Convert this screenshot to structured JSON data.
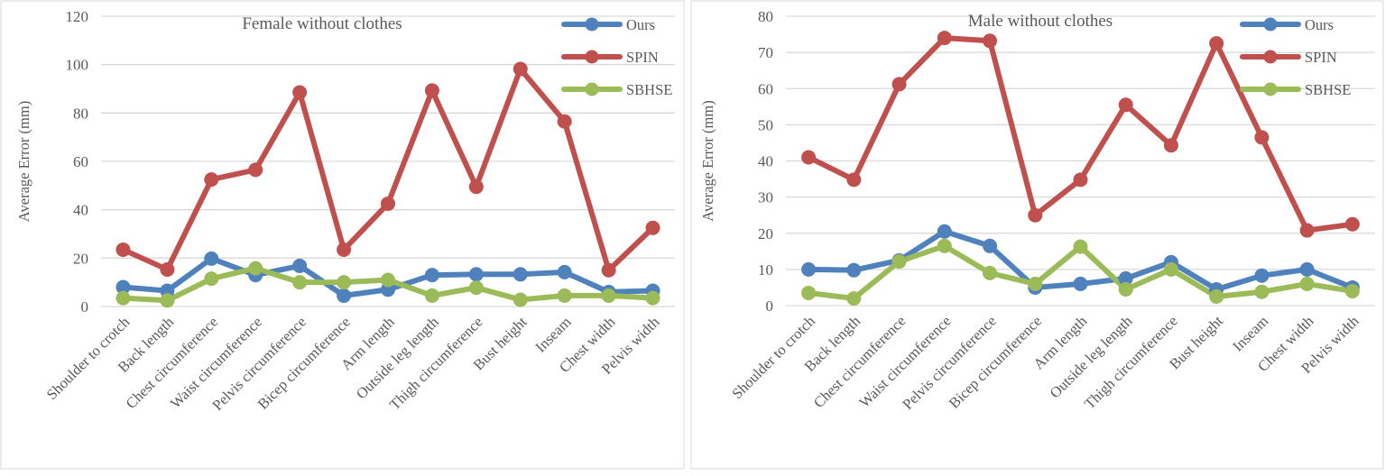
{
  "chart_data": [
    {
      "type": "line",
      "title": "Female without clothes",
      "xlabel": "",
      "ylabel": "Average Error (mm)",
      "ylim": [
        0,
        120
      ],
      "ytick_step": 20,
      "grid": true,
      "legend_position": "top-right",
      "categories": [
        "Shoulder to crotch",
        "Back length",
        "Chest circumference",
        "Waist circumference",
        "Pelvis circumference",
        "Bicep circumference",
        "Arm length",
        "Outside leg length",
        "Thigh circumference",
        "Bust height",
        "Inseam",
        "Chest width",
        "Pelvis width"
      ],
      "series": [
        {
          "name": "Ours",
          "color": "#4f81bd",
          "values": [
            8.0,
            6.5,
            19.8,
            13.0,
            16.8,
            4.5,
            7.0,
            13.0,
            13.3,
            13.3,
            14.2,
            6.0,
            6.5
          ]
        },
        {
          "name": "SPIN",
          "color": "#c0504d",
          "values": [
            23.5,
            15.3,
            52.5,
            56.5,
            88.5,
            23.5,
            42.5,
            89.3,
            49.5,
            98.2,
            76.5,
            15.0,
            32.5
          ]
        },
        {
          "name": "SBHSE",
          "color": "#9bbb59",
          "values": [
            3.5,
            2.5,
            11.5,
            15.8,
            10.0,
            10.0,
            11.0,
            4.5,
            7.8,
            2.8,
            4.5,
            4.5,
            3.5
          ]
        }
      ]
    },
    {
      "type": "line",
      "title": "Male without clothes",
      "xlabel": "",
      "ylabel": "Average Error (mm)",
      "ylim": [
        0,
        80
      ],
      "ytick_step": 10,
      "grid": true,
      "legend_position": "top-right",
      "categories": [
        "Shoulder to crotch",
        "Back length",
        "Chest circumference",
        "Waist circumference",
        "Pelvis circumference",
        "Bicep circumference",
        "Arm length",
        "Outside leg length",
        "Thigh circumference",
        "Bust height",
        "Inseam",
        "Chest width",
        "Pelvis width"
      ],
      "series": [
        {
          "name": "Ours",
          "color": "#4f81bd",
          "values": [
            10.0,
            9.8,
            12.5,
            20.5,
            16.5,
            5.0,
            6.0,
            7.5,
            12.0,
            4.5,
            8.3,
            10.0,
            5.0
          ]
        },
        {
          "name": "SPIN",
          "color": "#c0504d",
          "values": [
            41.0,
            34.8,
            61.2,
            74.0,
            73.2,
            25.0,
            34.8,
            55.5,
            44.3,
            72.5,
            46.5,
            20.8,
            22.5
          ]
        },
        {
          "name": "SBHSE",
          "color": "#9bbb59",
          "values": [
            3.5,
            2.0,
            12.2,
            16.5,
            9.0,
            6.0,
            16.3,
            4.5,
            10.0,
            2.5,
            3.8,
            6.0,
            4.0
          ]
        }
      ]
    }
  ]
}
